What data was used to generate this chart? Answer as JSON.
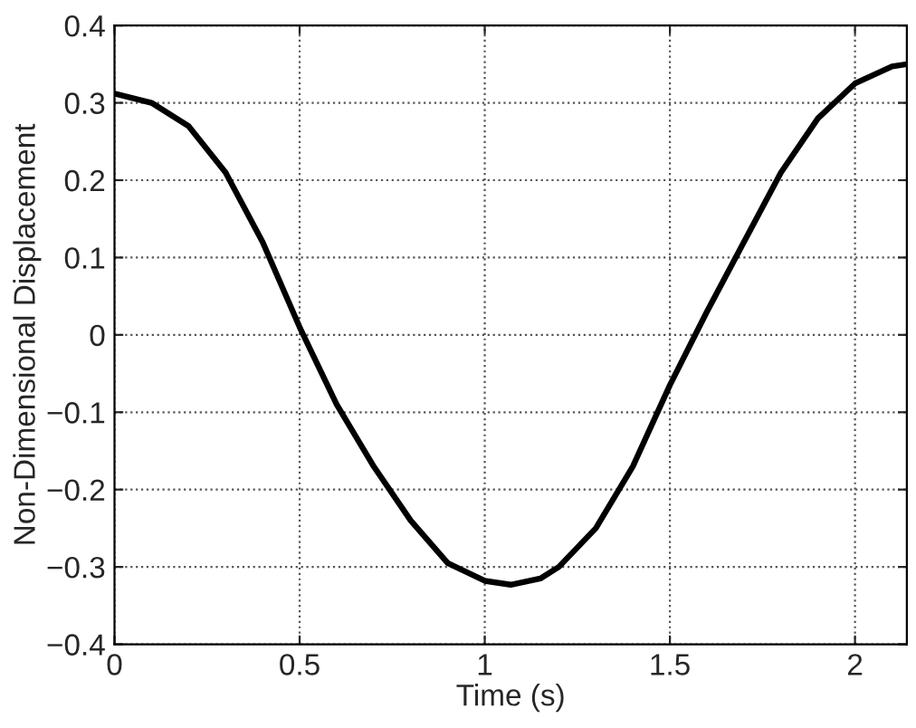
{
  "chart_data": {
    "type": "line",
    "xlabel": "Time (s)",
    "ylabel": "Non-Dimensional Displacement",
    "series": [
      {
        "color": "#000000",
        "x": [
          0,
          0.1,
          0.2,
          0.3,
          0.4,
          0.5,
          0.6,
          0.7,
          0.8,
          0.9,
          1.0,
          1.07,
          1.15,
          1.2,
          1.3,
          1.4,
          1.5,
          1.6,
          1.7,
          1.8,
          1.9,
          2.0,
          2.1,
          2.14
        ],
        "values": [
          0.312,
          0.3,
          0.27,
          0.21,
          0.12,
          0.01,
          -0.09,
          -0.17,
          -0.24,
          -0.295,
          -0.318,
          -0.323,
          -0.315,
          -0.3,
          -0.25,
          -0.17,
          -0.065,
          0.03,
          0.12,
          0.21,
          0.28,
          0.325,
          0.347,
          0.35
        ]
      }
    ],
    "xlim": [
      0,
      2.14
    ],
    "ylim": [
      -0.4,
      0.4
    ],
    "xticks": [
      0,
      0.5,
      1,
      1.5,
      2
    ],
    "yticks": [
      {
        "value": -0.4,
        "label": "−0.4"
      },
      {
        "value": -0.3,
        "label": "−0.3"
      },
      {
        "value": -0.2,
        "label": "−0.2"
      },
      {
        "value": -0.1,
        "label": "−0.1"
      },
      0,
      0.1,
      0.2,
      0.3,
      0.4
    ],
    "grid": true,
    "line_style": "solid",
    "marker": "none",
    "legend": false
  }
}
